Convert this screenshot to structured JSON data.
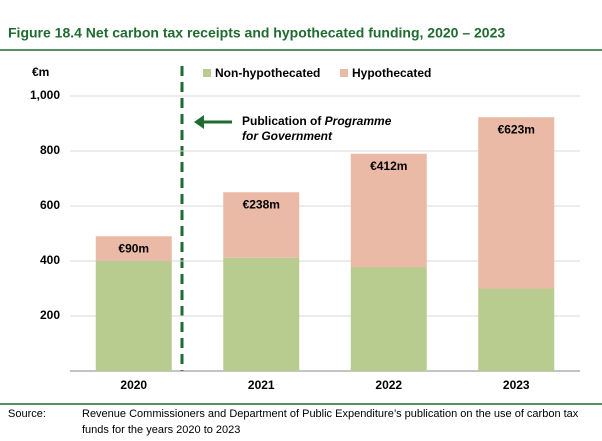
{
  "chart_data": {
    "type": "stacked-bar",
    "title": "Figure 18.4  Net carbon tax receipts and hypothecated funding, 2020 – 2023",
    "y_label": "€m",
    "categories": [
      "2020",
      "2021",
      "2022",
      "2023"
    ],
    "series": [
      {
        "name": "Non-hypothecated",
        "color": "#b8cc8f",
        "values": [
          400,
          412,
          378,
          300
        ]
      },
      {
        "name": "Hypothecated",
        "color": "#ebbaa6",
        "values": [
          90,
          238,
          412,
          623
        ],
        "value_labels": [
          "€90m",
          "€238m",
          "€412m",
          "€623m"
        ]
      }
    ],
    "ylim": [
      0,
      1000
    ],
    "yticks": [
      200,
      400,
      600,
      800,
      {
        "value": 1000,
        "label": "1,000"
      }
    ],
    "grid": true,
    "annotation": [
      "Publication of ",
      "Programme",
      "for Government"
    ],
    "source": {
      "label": "Source:",
      "lines": [
        "Revenue Commissioners and Department of Public Expenditure’s publication on the use of carbon tax",
        "funds for the years 2020 to 2023"
      ]
    }
  }
}
